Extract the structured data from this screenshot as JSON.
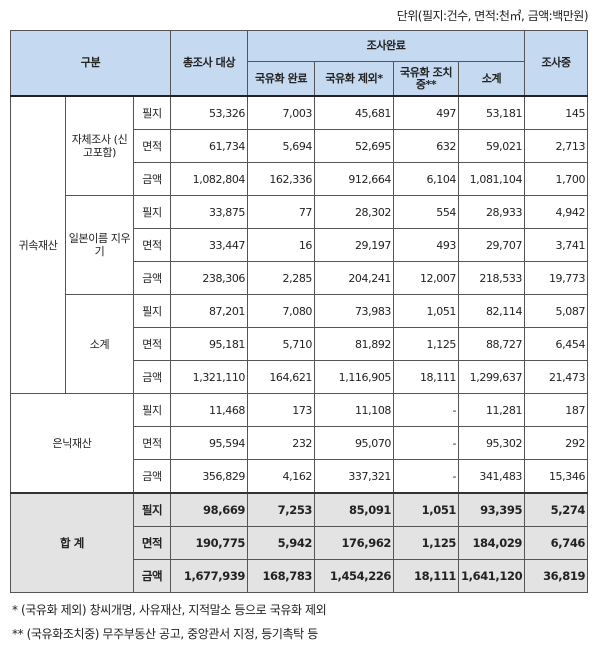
{
  "unit_note": "단위(필지:건수, 면적:천㎡, 금액:백만원)",
  "header": {
    "category": "구분",
    "total_target": "총조사 대상",
    "completed": "조사완료",
    "nationalized": "국유화 완료",
    "excluded": "국유화 제외*",
    "in_progress_action": "국유화 조치중**",
    "subtotal": "소계",
    "investigating": "조사중"
  },
  "groups": [
    {
      "name": "귀속재산",
      "subgroups": [
        {
          "name": "자체조사 (신고포함)",
          "rows": [
            {
              "metric": "필지",
              "values": [
                "53,326",
                "7,003",
                "45,681",
                "497",
                "53,181",
                "145"
              ]
            },
            {
              "metric": "면적",
              "values": [
                "61,734",
                "5,694",
                "52,695",
                "632",
                "59,021",
                "2,713"
              ]
            },
            {
              "metric": "금액",
              "values": [
                "1,082,804",
                "162,336",
                "912,664",
                "6,104",
                "1,081,104",
                "1,700"
              ]
            }
          ]
        },
        {
          "name": "일본이름 지우기",
          "rows": [
            {
              "metric": "필지",
              "values": [
                "33,875",
                "77",
                "28,302",
                "554",
                "28,933",
                "4,942"
              ]
            },
            {
              "metric": "면적",
              "values": [
                "33,447",
                "16",
                "29,197",
                "493",
                "29,707",
                "3,741"
              ]
            },
            {
              "metric": "금액",
              "values": [
                "238,306",
                "2,285",
                "204,241",
                "12,007",
                "218,533",
                "19,773"
              ]
            }
          ]
        },
        {
          "name": "소계",
          "rows": [
            {
              "metric": "필지",
              "values": [
                "87,201",
                "7,080",
                "73,983",
                "1,051",
                "82,114",
                "5,087"
              ]
            },
            {
              "metric": "면적",
              "values": [
                "95,181",
                "5,710",
                "81,892",
                "1,125",
                "88,727",
                "6,454"
              ]
            },
            {
              "metric": "금액",
              "values": [
                "1,321,110",
                "164,621",
                "1,116,905",
                "18,111",
                "1,299,637",
                "21,473"
              ]
            }
          ]
        }
      ]
    },
    {
      "name": "은닉재산",
      "rows": [
        {
          "metric": "필지",
          "values": [
            "11,468",
            "173",
            "11,108",
            "-",
            "11,281",
            "187"
          ]
        },
        {
          "metric": "면적",
          "values": [
            "95,594",
            "232",
            "95,070",
            "-",
            "95,302",
            "292"
          ]
        },
        {
          "metric": "금액",
          "values": [
            "356,829",
            "4,162",
            "337,321",
            "-",
            "341,483",
            "15,346"
          ]
        }
      ]
    },
    {
      "name": "합 계",
      "total": true,
      "rows": [
        {
          "metric": "필지",
          "values": [
            "98,669",
            "7,253",
            "85,091",
            "1,051",
            "93,395",
            "5,274"
          ]
        },
        {
          "metric": "면적",
          "values": [
            "190,775",
            "5,942",
            "176,962",
            "1,125",
            "184,029",
            "6,746"
          ]
        },
        {
          "metric": "금액",
          "values": [
            "1,677,939",
            "168,783",
            "1,454,226",
            "18,111",
            "1,641,120",
            "36,819"
          ]
        }
      ]
    }
  ],
  "footnotes": [
    "* (국유화 제외) 창씨개명, 사유재산, 지적말소 등으로 국유화 제외",
    "** (국유화조치중) 무주부동산 공고, 중앙관서 지정, 등기촉탁 등"
  ]
}
